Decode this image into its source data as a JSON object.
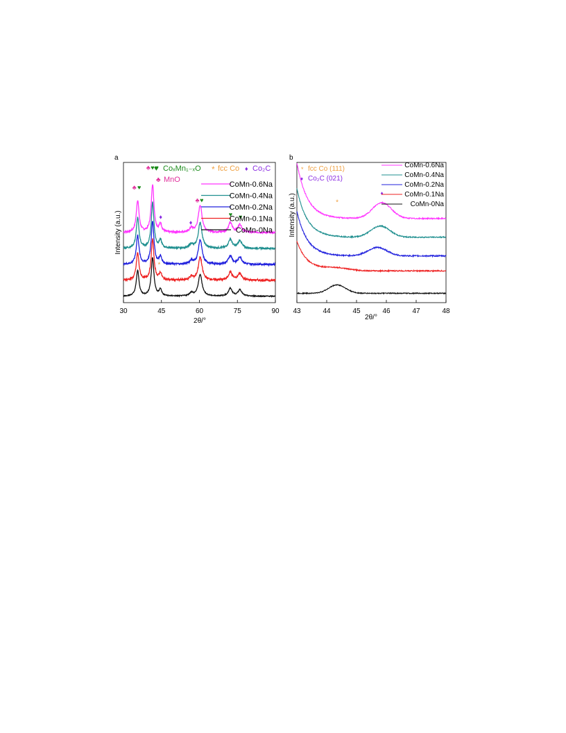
{
  "chart_data": [
    {
      "panel_label": "a",
      "type": "line",
      "xlabel": "2θ/°",
      "ylabel": "Intensity (a.u.)",
      "xlim": [
        30,
        90
      ],
      "xticks": [
        30,
        45,
        60,
        75,
        90
      ],
      "xtick_labels": [
        "30",
        "45",
        "60",
        "75",
        "90"
      ],
      "yticks_shown": false,
      "legend_position": "top-right",
      "marker_legend": [
        {
          "symbol": "♥",
          "color": "#1a8a1a",
          "text": "CoₓMn₁₋ₓO"
        },
        {
          "symbol": "*",
          "color": "#f0a040",
          "text": "fcc Co"
        },
        {
          "symbol": "♦",
          "color": "#8a2be2",
          "text": "Co₂C"
        },
        {
          "symbol": "♣",
          "color": "#e0309c",
          "text": "MnO"
        }
      ],
      "series": [
        {
          "name": "CoMn-0.6Na",
          "color": "#ff33ff",
          "offset": 4,
          "noise": 0.11
        },
        {
          "name": "CoMn-0.4Na",
          "color": "#1f8f8f",
          "offset": 3,
          "noise": 0.11
        },
        {
          "name": "CoMn-0.2Na",
          "color": "#2020dd",
          "offset": 2,
          "noise": 0.11
        },
        {
          "name": "CoMn-0.1Na",
          "color": "#ee2222",
          "offset": 1,
          "noise": 0.13
        },
        {
          "name": "CoMn-0Na",
          "color": "#111111",
          "offset": 0,
          "noise": 0.06
        }
      ],
      "peaks": [
        {
          "x": 35.6,
          "height": 2.0,
          "width": 0.65
        },
        {
          "x": 41.5,
          "height": 3.0,
          "width": 0.65
        },
        {
          "x": 44.6,
          "height": 0.5,
          "width": 0.6
        },
        {
          "x": 56.8,
          "height": 0.25,
          "width": 0.8
        },
        {
          "x": 60.3,
          "height": 1.7,
          "width": 0.9
        },
        {
          "x": 72.2,
          "height": 0.6,
          "width": 0.9
        },
        {
          "x": 76.0,
          "height": 0.5,
          "width": 0.9
        }
      ],
      "peak_annotations": [
        {
          "x": 34.3,
          "y": 6.7,
          "symbol": "♣",
          "color": "#e0309c"
        },
        {
          "x": 36.2,
          "y": 6.7,
          "symbol": "♥",
          "color": "#1a8a1a"
        },
        {
          "x": 39.8,
          "y": 7.95,
          "symbol": "♣",
          "color": "#e0309c"
        },
        {
          "x": 41.5,
          "y": 7.95,
          "symbol": "♥",
          "color": "#1a8a1a"
        },
        {
          "x": 43.2,
          "y": 7.95,
          "symbol": "♥",
          "color": "#1a8a1a"
        },
        {
          "x": 44.7,
          "y": 4.85,
          "symbol": "♦",
          "color": "#8a2be2"
        },
        {
          "x": 56.6,
          "y": 4.5,
          "symbol": "♦",
          "color": "#8a2be2"
        },
        {
          "x": 59.2,
          "y": 5.9,
          "symbol": "♣",
          "color": "#e0309c"
        },
        {
          "x": 60.9,
          "y": 5.9,
          "symbol": "♥",
          "color": "#1a8a1a"
        },
        {
          "x": 72.3,
          "y": 5.0,
          "symbol": "♥",
          "color": "#1a8a1a"
        },
        {
          "x": 76.2,
          "y": 4.85,
          "symbol": "♥",
          "color": "#1a8a1a"
        },
        {
          "x": 44.1,
          "y": 1.85,
          "symbol": "*",
          "color": "#f0a040"
        }
      ]
    },
    {
      "panel_label": "b",
      "type": "line",
      "xlabel": "2θ/°",
      "ylabel": "Intensity (a.u.)",
      "xlim": [
        43,
        48
      ],
      "xticks": [
        43,
        44,
        45,
        46,
        47,
        48
      ],
      "xtick_labels": [
        "43",
        "44",
        "45",
        "46",
        "47",
        "48"
      ],
      "yticks_shown": false,
      "legend_position": "top-right",
      "marker_legend": [
        {
          "symbol": "*",
          "color": "#f0a040",
          "text": "fcc Co (111)"
        },
        {
          "symbol": "♦",
          "color": "#8a2be2",
          "text": "Co₂C (021)"
        }
      ],
      "series": [
        {
          "name": "CoMn-0.6Na",
          "color": "#ff33ff",
          "offset": 4.0,
          "decay": 3.0,
          "broad_peak": {
            "x": 45.85,
            "height": 0.85,
            "width": 0.45
          },
          "noise": 0.06
        },
        {
          "name": "CoMn-0.4Na",
          "color": "#1f8f8f",
          "offset": 3.0,
          "decay": 2.6,
          "broad_peak": {
            "x": 45.8,
            "height": 0.6,
            "width": 0.45
          },
          "noise": 0.06
        },
        {
          "name": "CoMn-0.2Na",
          "color": "#2020dd",
          "offset": 2.0,
          "decay": 2.4,
          "broad_peak": {
            "x": 45.7,
            "height": 0.45,
            "width": 0.45
          },
          "noise": 0.07
        },
        {
          "name": "CoMn-0.1Na",
          "color": "#ee2222",
          "offset": 1.2,
          "decay": 1.6,
          "broad_peak": {
            "x": 44.3,
            "height": 0.15,
            "width": 0.6
          },
          "noise": 0.06
        },
        {
          "name": "CoMn-0Na",
          "color": "#111111",
          "offset": 0.0,
          "decay": 0.0,
          "broad_peak": {
            "x": 44.35,
            "height": 0.45,
            "width": 0.4
          },
          "noise": 0.05
        }
      ],
      "peak_annotations": [
        {
          "x": 44.35,
          "y": 4.75,
          "symbol": "*",
          "color": "#f0a040"
        },
        {
          "x": 45.85,
          "y": 5.25,
          "symbol": "♦",
          "color": "#8a2be2"
        }
      ]
    }
  ]
}
